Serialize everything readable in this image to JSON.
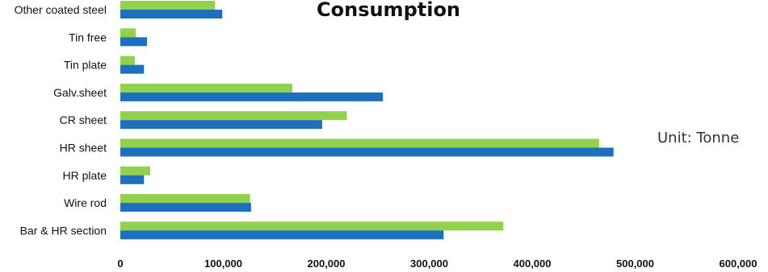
{
  "chart_data": {
    "type": "bar",
    "orientation": "horizontal",
    "title": "Consumption",
    "annotation": "Unit: Tonne",
    "categories": [
      "Other coated steel",
      "Tin free",
      "Tin plate",
      "Galv.sheet",
      "CR sheet",
      "HR sheet",
      "HR plate",
      "Wire rod",
      "Bar & HR section"
    ],
    "series": [
      {
        "color": "#92d050",
        "values": [
          92000,
          15000,
          14000,
          167000,
          220000,
          465000,
          29000,
          126000,
          372000
        ]
      },
      {
        "color": "#1f6fbf",
        "values": [
          99000,
          26000,
          23000,
          255000,
          196000,
          479000,
          23000,
          127000,
          314000
        ]
      }
    ],
    "xlim": [
      0,
      600000
    ],
    "xticks": [
      "0",
      "100,000",
      "200,000",
      "300,000",
      "400,000",
      "500,000",
      "600,000"
    ],
    "grid": false,
    "legend": "none"
  }
}
